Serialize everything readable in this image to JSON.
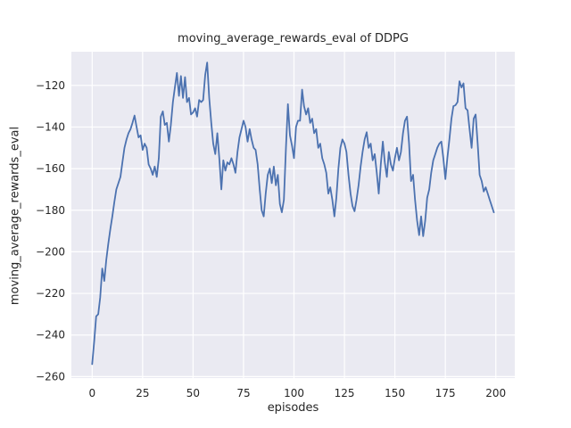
{
  "figure": {
    "title": "moving_average_rewards_eval of DDPG",
    "xlabel": "episodes",
    "ylabel": "moving_average_rewards_eval"
  },
  "colors": {
    "figure_bg": "#ffffff",
    "axes_bg": "#eaeaf2",
    "grid": "#ffffff",
    "line": "#4c72b0",
    "text": "#262626"
  },
  "chart_data": {
    "type": "line",
    "title": "moving_average_rewards_eval of DDPG",
    "xlabel": "episodes",
    "ylabel": "moving_average_rewards_eval",
    "grid": true,
    "legend_position": "none",
    "x_ticks": [
      0,
      25,
      50,
      75,
      100,
      125,
      150,
      175,
      200
    ],
    "y_ticks": [
      -260,
      -240,
      -220,
      -200,
      -180,
      -160,
      -140,
      -120
    ],
    "xlim": [
      -10.3,
      209.4
    ],
    "ylim": [
      -260.7,
      -103.8
    ],
    "series": [
      {
        "name": "moving_average_rewards_eval",
        "x_start": 0,
        "x_step": 1,
        "values": [
          -254,
          -243,
          -231,
          -230,
          -222,
          -208,
          -214,
          -204,
          -196,
          -189,
          -183,
          -176,
          -170,
          -167,
          -164,
          -157,
          -150,
          -146,
          -143,
          -141,
          -138,
          -134.5,
          -140,
          -145,
          -144,
          -151,
          -148,
          -150,
          -158,
          -160,
          -163,
          -159,
          -164,
          -155,
          -135,
          -132.5,
          -139,
          -138,
          -147,
          -139,
          -128,
          -121,
          -114,
          -125,
          -115.5,
          -126,
          -116,
          -128,
          -126,
          -134,
          -133,
          -131,
          -135,
          -127,
          -128,
          -127,
          -115,
          -109,
          -126,
          -138,
          -148,
          -153,
          -143,
          -155,
          -170,
          -156,
          -161,
          -157,
          -158,
          -155,
          -158,
          -162,
          -152,
          -145,
          -141,
          -137,
          -140,
          -147,
          -141,
          -146,
          -150,
          -151,
          -158,
          -170,
          -180,
          -183,
          -172,
          -163,
          -160,
          -167,
          -159,
          -168,
          -163,
          -177,
          -181,
          -175,
          -150,
          -129,
          -144,
          -149,
          -155,
          -140,
          -137,
          -137,
          -122,
          -130,
          -134,
          -131,
          -138,
          -136,
          -143,
          -141,
          -150,
          -148,
          -155,
          -158,
          -162,
          -172,
          -169,
          -175,
          -183,
          -174,
          -160,
          -150,
          -146,
          -148,
          -152,
          -163,
          -172,
          -178,
          -180.5,
          -175,
          -168,
          -159,
          -152,
          -146,
          -142.5,
          -150,
          -148,
          -156,
          -153,
          -162,
          -172,
          -158,
          -147,
          -157,
          -164,
          -152,
          -158,
          -161,
          -155,
          -150,
          -156,
          -152,
          -143,
          -137,
          -135,
          -148,
          -166,
          -163,
          -175,
          -185,
          -192,
          -183,
          -192.5,
          -185,
          -174,
          -170,
          -162,
          -156,
          -153,
          -150,
          -148,
          -147,
          -155,
          -165,
          -155,
          -146,
          -136,
          -130,
          -129.5,
          -128,
          -118,
          -121,
          -119,
          -131,
          -132,
          -141,
          -150,
          -136,
          -134,
          -148,
          -163,
          -166,
          -171,
          -169,
          -172,
          -175,
          -178,
          -181
        ]
      }
    ]
  }
}
